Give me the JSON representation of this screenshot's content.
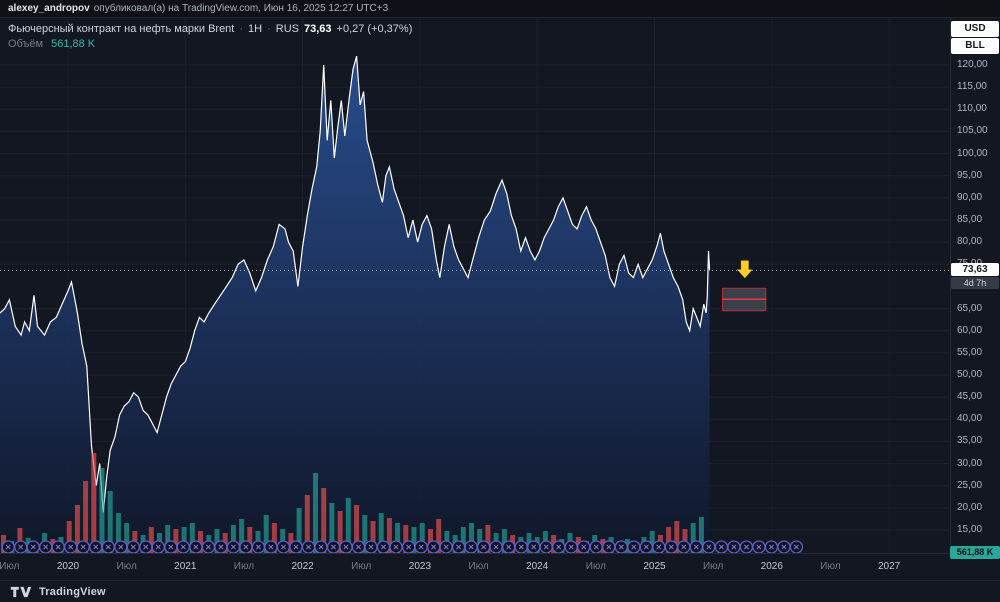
{
  "attribution": {
    "user": "alexey_andropov",
    "text": "опубликовал(а) на TradingView.com, Июн 16, 2025 12:27 UTC+3"
  },
  "legend": {
    "title": "Фьючерсный контракт на нефть марки Brent",
    "sep": "·",
    "interval": "1H",
    "exchange": "RUS",
    "price": "73,63",
    "change": "+0,27 (+0,37%)",
    "volume_label": "Объём",
    "volume_value": "561,88 K"
  },
  "price_scale": {
    "currency_button": "USD",
    "unit_button": "BLL",
    "labels": [
      "120,00",
      "115,00",
      "110,00",
      "105,00",
      "100,00",
      "95,00",
      "90,00",
      "85,00",
      "80,00",
      "75,00",
      "65,00",
      "60,00",
      "55,00",
      "50,00",
      "45,00",
      "40,00",
      "35,00",
      "30,00",
      "25,00",
      "20,00",
      "15,00"
    ],
    "last_price_badge": "73,63",
    "countdown_badge": "4d 7h",
    "volume_badge": "561,88 K"
  },
  "time_scale": {
    "ticks": [
      {
        "label": "Июл",
        "t": 2019.5
      },
      {
        "label": "2020",
        "t": 2020,
        "year": true
      },
      {
        "label": "Июл",
        "t": 2020.5
      },
      {
        "label": "2021",
        "t": 2021,
        "year": true
      },
      {
        "label": "Июл",
        "t": 2021.5
      },
      {
        "label": "2022",
        "t": 2022,
        "year": true
      },
      {
        "label": "Июл",
        "t": 2022.5
      },
      {
        "label": "2023",
        "t": 2023,
        "year": true
      },
      {
        "label": "Июл",
        "t": 2023.5
      },
      {
        "label": "2024",
        "t": 2024,
        "year": true
      },
      {
        "label": "Июл",
        "t": 2024.5
      },
      {
        "label": "2025",
        "t": 2025,
        "year": true
      },
      {
        "label": "Июл",
        "t": 2025.5
      },
      {
        "label": "2026",
        "t": 2026,
        "year": true
      },
      {
        "label": "Июл",
        "t": 2026.5
      },
      {
        "label": "2027",
        "t": 2027,
        "year": true
      }
    ]
  },
  "footer": {
    "brand": "TradingView"
  },
  "drawings": {
    "arrow": {
      "type": "arrow-down",
      "t": 2025.77,
      "price": 73.4
    },
    "position_box": {
      "t1": 2025.58,
      "t2": 2025.95,
      "p1": 69.6,
      "p2": 64.5,
      "entry": 67.1
    }
  },
  "colors": {
    "bg": "#131722",
    "grid": "rgba(42,46,57,0.45)",
    "grid_v": "rgba(42,46,57,0.35)",
    "line": "#ffffff",
    "area_top": "rgba(42,82,152,0.9)",
    "area_bottom": "rgba(16,23,42,0.9)",
    "vol_up": "#26a69a",
    "vol_down": "#ef5350",
    "marker_ring": "#5d5fce",
    "marker_x": "#8e7ce8",
    "arrow": "#ffcf26",
    "pos_fill": "rgba(70,74,84,0.8)",
    "pos_stroke": "rgba(242,54,69,0.65)",
    "pos_line": "#f23645",
    "last_price_line": "#b2b5be",
    "accent_teal": "#2aa79b"
  },
  "chart_data": {
    "type": "area",
    "title": "Фьючерсный контракт на нефть марки Brent",
    "interval": "1H",
    "exchange": "RUS",
    "last_price": 73.63,
    "change": 0.27,
    "change_pct": 0.37,
    "current_volume_k": 561.88,
    "ylim": [
      15,
      120
    ],
    "y_tick_step": 5,
    "x_range_years": [
      2019.42,
      2027.6
    ],
    "legend_position": "top-left",
    "grid": "faint",
    "series": [
      {
        "name": "price",
        "points": [
          [
            2019.42,
            64
          ],
          [
            2019.46,
            65
          ],
          [
            2019.5,
            67
          ],
          [
            2019.55,
            61
          ],
          [
            2019.6,
            59
          ],
          [
            2019.63,
            62
          ],
          [
            2019.67,
            60
          ],
          [
            2019.71,
            68
          ],
          [
            2019.74,
            61
          ],
          [
            2019.8,
            59
          ],
          [
            2019.85,
            62
          ],
          [
            2019.9,
            63
          ],
          [
            2019.95,
            66
          ],
          [
            2020.0,
            69
          ],
          [
            2020.03,
            71
          ],
          [
            2020.08,
            64
          ],
          [
            2020.12,
            57
          ],
          [
            2020.16,
            52
          ],
          [
            2020.2,
            34
          ],
          [
            2020.24,
            25
          ],
          [
            2020.27,
            30
          ],
          [
            2020.3,
            19
          ],
          [
            2020.33,
            27
          ],
          [
            2020.36,
            33
          ],
          [
            2020.4,
            36
          ],
          [
            2020.44,
            41
          ],
          [
            2020.48,
            43
          ],
          [
            2020.52,
            44
          ],
          [
            2020.56,
            46
          ],
          [
            2020.6,
            45
          ],
          [
            2020.64,
            42
          ],
          [
            2020.68,
            41
          ],
          [
            2020.72,
            39
          ],
          [
            2020.76,
            37
          ],
          [
            2020.8,
            41
          ],
          [
            2020.84,
            45
          ],
          [
            2020.88,
            48
          ],
          [
            2020.92,
            50
          ],
          [
            2020.96,
            52
          ],
          [
            2021.0,
            53
          ],
          [
            2021.04,
            56
          ],
          [
            2021.08,
            60
          ],
          [
            2021.12,
            63
          ],
          [
            2021.16,
            62
          ],
          [
            2021.2,
            64
          ],
          [
            2021.25,
            66
          ],
          [
            2021.3,
            68
          ],
          [
            2021.35,
            70
          ],
          [
            2021.4,
            72
          ],
          [
            2021.45,
            75
          ],
          [
            2021.5,
            76
          ],
          [
            2021.55,
            73
          ],
          [
            2021.6,
            69
          ],
          [
            2021.65,
            72
          ],
          [
            2021.7,
            76
          ],
          [
            2021.75,
            79
          ],
          [
            2021.8,
            84
          ],
          [
            2021.85,
            83
          ],
          [
            2021.88,
            80
          ],
          [
            2021.92,
            78
          ],
          [
            2021.96,
            70
          ],
          [
            2022.0,
            79
          ],
          [
            2022.04,
            86
          ],
          [
            2022.08,
            92
          ],
          [
            2022.12,
            97
          ],
          [
            2022.15,
            105
          ],
          [
            2022.18,
            120
          ],
          [
            2022.21,
            103
          ],
          [
            2022.24,
            112
          ],
          [
            2022.27,
            99
          ],
          [
            2022.3,
            106
          ],
          [
            2022.33,
            112
          ],
          [
            2022.36,
            104
          ],
          [
            2022.4,
            113
          ],
          [
            2022.43,
            119
          ],
          [
            2022.46,
            122
          ],
          [
            2022.49,
            111
          ],
          [
            2022.52,
            114
          ],
          [
            2022.55,
            103
          ],
          [
            2022.6,
            98
          ],
          [
            2022.64,
            93
          ],
          [
            2022.68,
            89
          ],
          [
            2022.71,
            95
          ],
          [
            2022.74,
            97
          ],
          [
            2022.78,
            92
          ],
          [
            2022.82,
            89
          ],
          [
            2022.86,
            86
          ],
          [
            2022.9,
            81
          ],
          [
            2022.94,
            85
          ],
          [
            2022.98,
            80
          ],
          [
            2023.02,
            84
          ],
          [
            2023.06,
            86
          ],
          [
            2023.1,
            83
          ],
          [
            2023.14,
            76
          ],
          [
            2023.17,
            72
          ],
          [
            2023.21,
            79
          ],
          [
            2023.25,
            84
          ],
          [
            2023.29,
            79
          ],
          [
            2023.33,
            76
          ],
          [
            2023.37,
            74
          ],
          [
            2023.41,
            72
          ],
          [
            2023.45,
            76
          ],
          [
            2023.5,
            81
          ],
          [
            2023.55,
            85
          ],
          [
            2023.6,
            87
          ],
          [
            2023.65,
            91
          ],
          [
            2023.7,
            94
          ],
          [
            2023.74,
            91
          ],
          [
            2023.78,
            86
          ],
          [
            2023.82,
            83
          ],
          [
            2023.86,
            78
          ],
          [
            2023.9,
            81
          ],
          [
            2023.94,
            78
          ],
          [
            2023.98,
            76
          ],
          [
            2024.02,
            78
          ],
          [
            2024.06,
            81
          ],
          [
            2024.1,
            83
          ],
          [
            2024.14,
            85
          ],
          [
            2024.18,
            88
          ],
          [
            2024.22,
            90
          ],
          [
            2024.26,
            87
          ],
          [
            2024.3,
            84
          ],
          [
            2024.34,
            83
          ],
          [
            2024.38,
            86
          ],
          [
            2024.42,
            88
          ],
          [
            2024.46,
            85
          ],
          [
            2024.5,
            83
          ],
          [
            2024.54,
            80
          ],
          [
            2024.58,
            77
          ],
          [
            2024.62,
            72
          ],
          [
            2024.66,
            70
          ],
          [
            2024.7,
            75
          ],
          [
            2024.74,
            77
          ],
          [
            2024.78,
            73
          ],
          [
            2024.82,
            72
          ],
          [
            2024.86,
            75
          ],
          [
            2024.9,
            72
          ],
          [
            2024.94,
            74
          ],
          [
            2024.98,
            76
          ],
          [
            2025.02,
            79
          ],
          [
            2025.05,
            82
          ],
          [
            2025.08,
            78
          ],
          [
            2025.12,
            75
          ],
          [
            2025.16,
            72
          ],
          [
            2025.2,
            70
          ],
          [
            2025.24,
            67
          ],
          [
            2025.27,
            62
          ],
          [
            2025.3,
            60
          ],
          [
            2025.33,
            65
          ],
          [
            2025.36,
            63
          ],
          [
            2025.39,
            61
          ],
          [
            2025.42,
            66
          ],
          [
            2025.44,
            64
          ],
          [
            2025.45,
            68
          ],
          [
            2025.46,
            78
          ],
          [
            2025.47,
            73.63
          ]
        ]
      }
    ],
    "volume": {
      "note": "relative bar heights read from pixels; direction r=down, g=up",
      "start_t": 2019.45,
      "step_t": 0.07,
      "bars": [
        [
          18,
          "r"
        ],
        [
          12,
          "g"
        ],
        [
          25,
          "r"
        ],
        [
          15,
          "g"
        ],
        [
          10,
          "r"
        ],
        [
          20,
          "g"
        ],
        [
          14,
          "r"
        ],
        [
          16,
          "g"
        ],
        [
          32,
          "r"
        ],
        [
          48,
          "r"
        ],
        [
          72,
          "r"
        ],
        [
          100,
          "r"
        ],
        [
          85,
          "g"
        ],
        [
          62,
          "g"
        ],
        [
          40,
          "g"
        ],
        [
          30,
          "g"
        ],
        [
          22,
          "r"
        ],
        [
          18,
          "g"
        ],
        [
          26,
          "r"
        ],
        [
          20,
          "g"
        ],
        [
          28,
          "g"
        ],
        [
          24,
          "r"
        ],
        [
          26,
          "g"
        ],
        [
          30,
          "g"
        ],
        [
          22,
          "r"
        ],
        [
          18,
          "g"
        ],
        [
          24,
          "g"
        ],
        [
          20,
          "r"
        ],
        [
          28,
          "g"
        ],
        [
          34,
          "g"
        ],
        [
          26,
          "r"
        ],
        [
          22,
          "g"
        ],
        [
          38,
          "g"
        ],
        [
          30,
          "r"
        ],
        [
          24,
          "g"
        ],
        [
          20,
          "r"
        ],
        [
          45,
          "g"
        ],
        [
          58,
          "r"
        ],
        [
          80,
          "g"
        ],
        [
          65,
          "r"
        ],
        [
          50,
          "g"
        ],
        [
          42,
          "r"
        ],
        [
          55,
          "g"
        ],
        [
          48,
          "r"
        ],
        [
          38,
          "g"
        ],
        [
          32,
          "r"
        ],
        [
          40,
          "g"
        ],
        [
          35,
          "r"
        ],
        [
          30,
          "g"
        ],
        [
          28,
          "r"
        ],
        [
          26,
          "g"
        ],
        [
          30,
          "g"
        ],
        [
          24,
          "r"
        ],
        [
          34,
          "r"
        ],
        [
          22,
          "g"
        ],
        [
          18,
          "g"
        ],
        [
          26,
          "g"
        ],
        [
          30,
          "g"
        ],
        [
          24,
          "g"
        ],
        [
          28,
          "r"
        ],
        [
          20,
          "g"
        ],
        [
          24,
          "g"
        ],
        [
          18,
          "r"
        ],
        [
          16,
          "g"
        ],
        [
          20,
          "g"
        ],
        [
          16,
          "g"
        ],
        [
          22,
          "g"
        ],
        [
          18,
          "r"
        ],
        [
          14,
          "g"
        ],
        [
          20,
          "g"
        ],
        [
          16,
          "r"
        ],
        [
          12,
          "g"
        ],
        [
          18,
          "g"
        ],
        [
          14,
          "r"
        ],
        [
          16,
          "g"
        ],
        [
          12,
          "r"
        ],
        [
          14,
          "g"
        ],
        [
          10,
          "g"
        ],
        [
          16,
          "g"
        ],
        [
          22,
          "g"
        ],
        [
          18,
          "r"
        ],
        [
          26,
          "r"
        ],
        [
          32,
          "r"
        ],
        [
          24,
          "r"
        ],
        [
          30,
          "g"
        ],
        [
          36,
          "g"
        ]
      ]
    },
    "event_markers": {
      "count": 64,
      "t_start": 2019.49,
      "t_end": 2026.21
    }
  }
}
